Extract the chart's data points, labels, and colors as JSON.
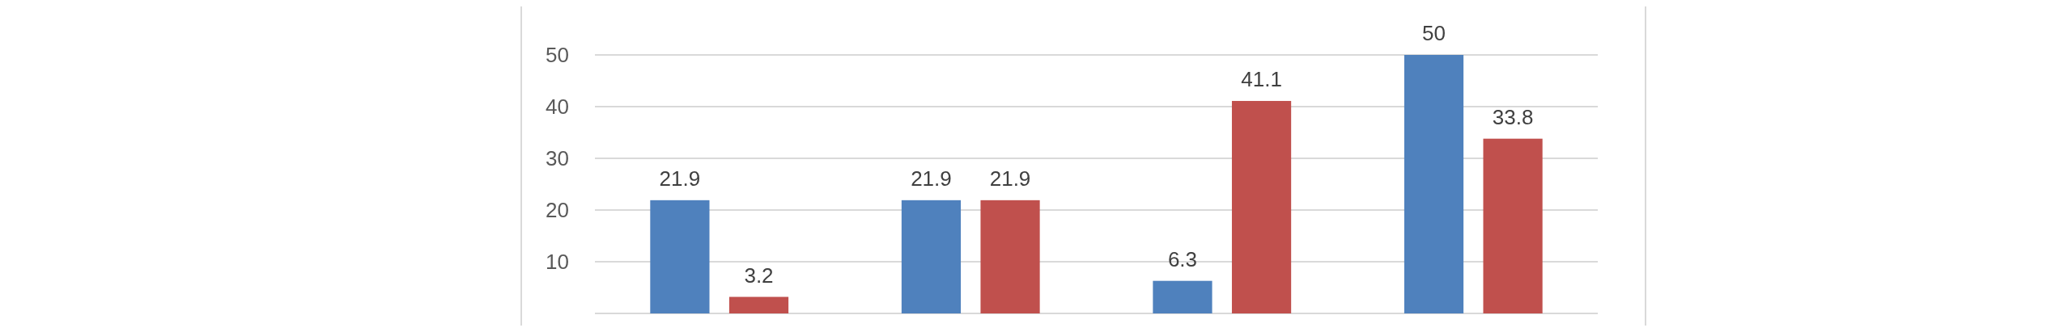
{
  "chart_data": {
    "type": "bar",
    "categories": [
      null,
      null,
      null,
      null
    ],
    "series": [
      {
        "color": "#4f81bd",
        "values": [
          21.9,
          21.9,
          6.3,
          50
        ]
      },
      {
        "color": "#c0504d",
        "values": [
          3.2,
          21.9,
          41.1,
          33.8
        ]
      }
    ],
    "ylim": [
      0,
      50
    ],
    "yticks": [
      10,
      20,
      30,
      40,
      50
    ],
    "grid": "y",
    "data_labels": true
  }
}
